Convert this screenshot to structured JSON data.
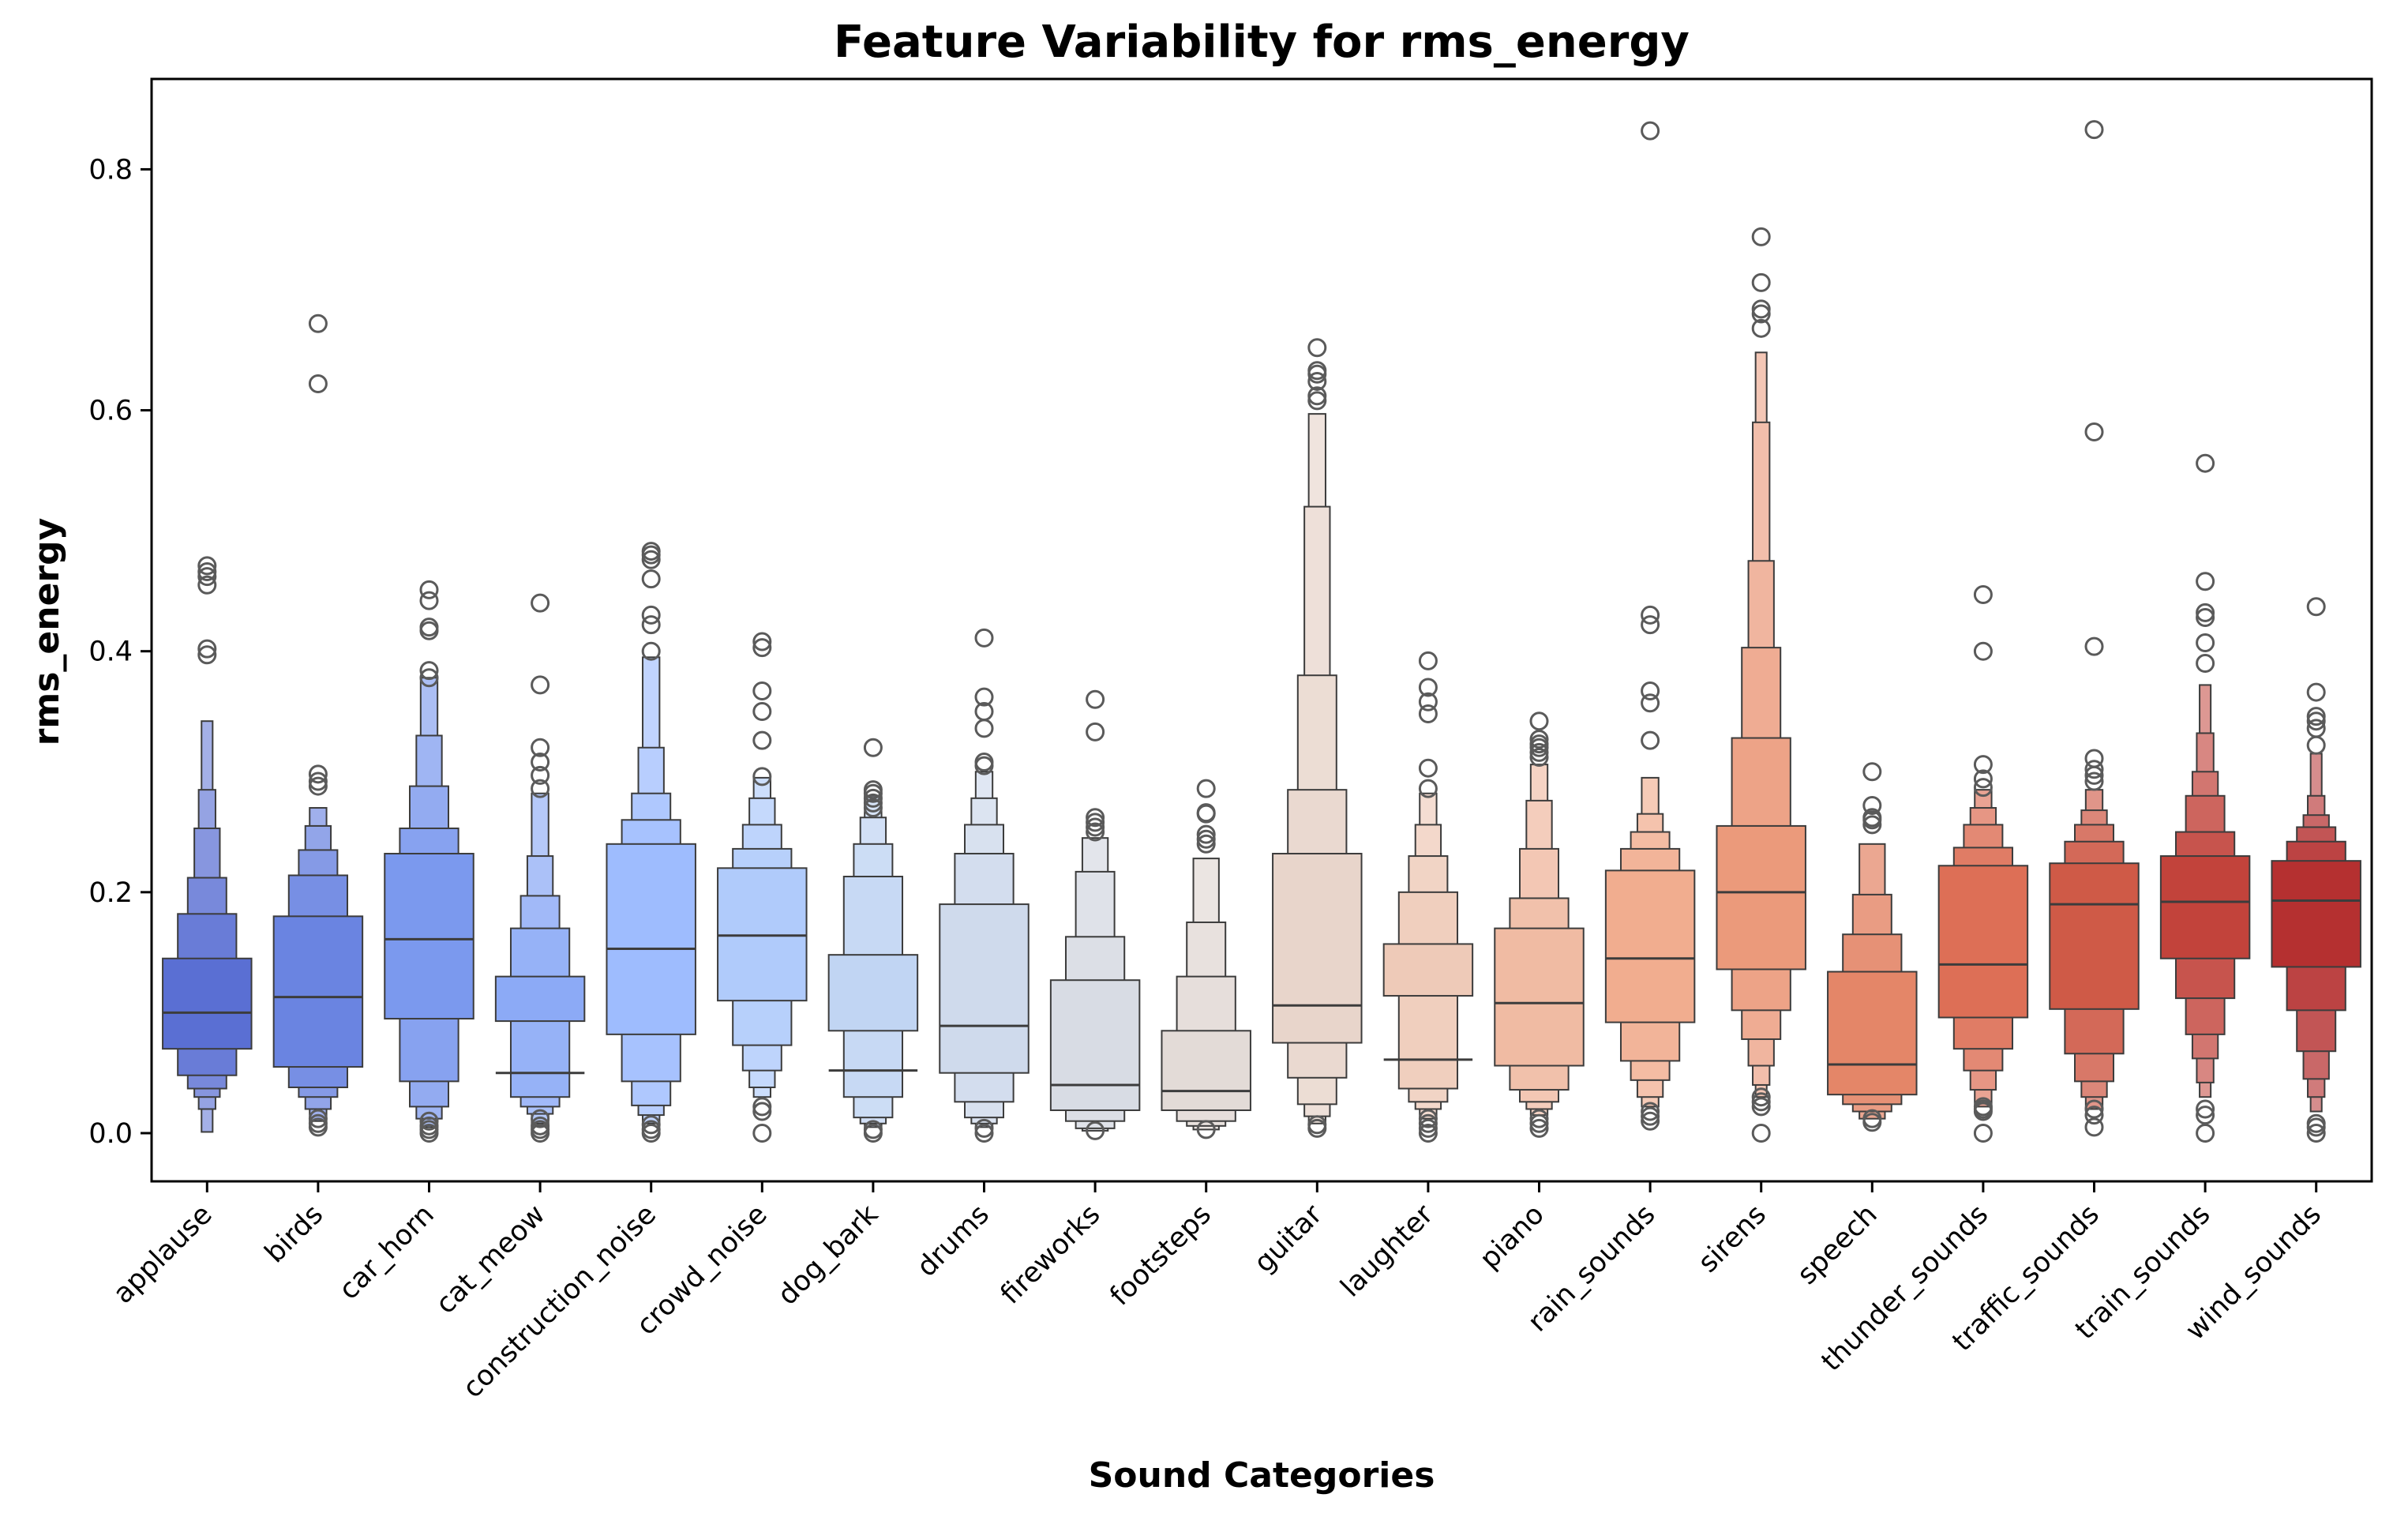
{
  "chart_data": {
    "type": "boxen",
    "title": "Feature Variability for rms_energy",
    "xlabel": "Sound Categories",
    "ylabel": "rms_energy",
    "ylim": [
      -0.04,
      0.875
    ],
    "yticks": [
      0.0,
      0.2,
      0.4,
      0.6,
      0.8
    ],
    "ytick_labels": [
      "0.0",
      "0.2",
      "0.4",
      "0.6",
      "0.8"
    ],
    "grid": false,
    "legend": "none",
    "palette": "coolwarm",
    "categories": [
      "applause",
      "birds",
      "car_horn",
      "cat_meow",
      "construction_noise",
      "crowd_noise",
      "dog_bark",
      "drums",
      "fireworks",
      "footsteps",
      "guitar",
      "laughter",
      "piano",
      "rain_sounds",
      "sirens",
      "speech",
      "thunder_sounds",
      "traffic_sounds",
      "train_sounds",
      "wind_sounds"
    ],
    "colors": [
      "#5a6fd3",
      "#6a84e1",
      "#7b99ee",
      "#8caaf6",
      "#9ebcfe",
      "#b0cbfb",
      "#c1d5f3",
      "#cfdaec",
      "#d8dce4",
      "#e3dbd7",
      "#e8d5cb",
      "#eecab8",
      "#f0bba3",
      "#f1ad8f",
      "#eb9a7b",
      "#e48668",
      "#dd6f56",
      "#cf5a47",
      "#c2433b",
      "#b53030"
    ],
    "series": [
      {
        "category": "applause",
        "median": 0.1,
        "bounds": [
          0.001,
          0.02,
          0.03,
          0.037,
          0.048,
          0.07,
          0.145,
          0.182,
          0.212,
          0.253,
          0.285,
          0.342
        ],
        "outliers": [
          0.397,
          0.402,
          0.455,
          0.462,
          0.466,
          0.471
        ]
      },
      {
        "category": "birds",
        "median": 0.113,
        "bounds": [
          0.01,
          0.02,
          0.03,
          0.038,
          0.055,
          0.075,
          0.18,
          0.214,
          0.235,
          0.255,
          0.27
        ],
        "outliers": [
          0.005,
          0.008,
          0.012,
          0.288,
          0.292,
          0.298,
          0.622,
          0.672
        ]
      },
      {
        "category": "car_horn",
        "median": 0.161,
        "bounds": [
          0.005,
          0.012,
          0.022,
          0.043,
          0.095,
          0.207,
          0.232,
          0.253,
          0.288,
          0.33,
          0.378
        ],
        "outliers": [
          0.0,
          0.003,
          0.006,
          0.01,
          0.378,
          0.384,
          0.417,
          0.42,
          0.442,
          0.451
        ]
      },
      {
        "category": "cat_meow",
        "median": 0.05,
        "bounds": [
          0.008,
          0.016,
          0.022,
          0.03,
          0.093,
          0.13,
          0.17,
          0.197,
          0.23,
          0.282
        ],
        "outliers": [
          0.0,
          0.003,
          0.006,
          0.012,
          0.286,
          0.297,
          0.308,
          0.32,
          0.372,
          0.44
        ]
      },
      {
        "category": "construction_noise",
        "median": 0.153,
        "bounds": [
          0.008,
          0.015,
          0.023,
          0.043,
          0.082,
          0.21,
          0.24,
          0.26,
          0.282,
          0.32,
          0.395
        ],
        "outliers": [
          0.0,
          0.003,
          0.007,
          0.4,
          0.422,
          0.43,
          0.46,
          0.476,
          0.48,
          0.483
        ]
      },
      {
        "category": "crowd_noise",
        "median": 0.164,
        "bounds": [
          0.03,
          0.038,
          0.052,
          0.073,
          0.11,
          0.2,
          0.22,
          0.236,
          0.256,
          0.278,
          0.295
        ],
        "outliers": [
          0.0,
          0.018,
          0.022,
          0.296,
          0.326,
          0.35,
          0.367,
          0.403,
          0.408
        ]
      },
      {
        "category": "dog_bark",
        "median": 0.052,
        "bounds": [
          0.005,
          0.008,
          0.013,
          0.03,
          0.085,
          0.148,
          0.213,
          0.24,
          0.262,
          0.28
        ],
        "outliers": [
          0.0,
          0.003,
          0.27,
          0.274,
          0.278,
          0.282,
          0.285,
          0.32
        ]
      },
      {
        "category": "drums",
        "median": 0.089,
        "bounds": [
          0.005,
          0.008,
          0.013,
          0.026,
          0.05,
          0.137,
          0.19,
          0.232,
          0.256,
          0.278,
          0.3
        ],
        "outliers": [
          0.0,
          0.004,
          0.305,
          0.308,
          0.336,
          0.35,
          0.362,
          0.411
        ]
      },
      {
        "category": "fireworks",
        "median": 0.04,
        "bounds": [
          0.002,
          0.004,
          0.01,
          0.019,
          0.082,
          0.127,
          0.163,
          0.217,
          0.245
        ],
        "outliers": [
          0.002,
          0.25,
          0.254,
          0.258,
          0.262,
          0.333,
          0.36
        ]
      },
      {
        "category": "footsteps",
        "median": 0.035,
        "bounds": [
          0.003,
          0.006,
          0.01,
          0.019,
          0.058,
          0.085,
          0.13,
          0.175,
          0.228
        ],
        "outliers": [
          0.003,
          0.24,
          0.244,
          0.248,
          0.265,
          0.266,
          0.286
        ]
      },
      {
        "category": "guitar",
        "median": 0.106,
        "bounds": [
          0.008,
          0.014,
          0.024,
          0.046,
          0.075,
          0.18,
          0.232,
          0.285,
          0.38,
          0.52,
          0.597
        ],
        "outliers": [
          0.004,
          0.007,
          0.608,
          0.612,
          0.624,
          0.63,
          0.633,
          0.652
        ]
      },
      {
        "category": "laughter",
        "median": 0.061,
        "bounds": [
          0.012,
          0.02,
          0.026,
          0.037,
          0.114,
          0.157,
          0.2,
          0.23,
          0.256,
          0.282
        ],
        "outliers": [
          0.0,
          0.004,
          0.008,
          0.012,
          0.286,
          0.303,
          0.348,
          0.358,
          0.37,
          0.392
        ]
      },
      {
        "category": "piano",
        "median": 0.108,
        "bounds": [
          0.015,
          0.02,
          0.026,
          0.036,
          0.056,
          0.142,
          0.17,
          0.195,
          0.236,
          0.276,
          0.306
        ],
        "outliers": [
          0.004,
          0.008,
          0.012,
          0.312,
          0.316,
          0.32,
          0.323,
          0.327,
          0.342
        ]
      },
      {
        "category": "rain_sounds",
        "median": 0.145,
        "bounds": [
          0.022,
          0.03,
          0.044,
          0.06,
          0.092,
          0.195,
          0.218,
          0.236,
          0.25,
          0.265,
          0.295
        ],
        "outliers": [
          0.01,
          0.014,
          0.018,
          0.326,
          0.357,
          0.367,
          0.422,
          0.43,
          0.832
        ]
      },
      {
        "category": "sirens",
        "median": 0.2,
        "bounds": [
          0.03,
          0.04,
          0.056,
          0.078,
          0.102,
          0.136,
          0.255,
          0.328,
          0.403,
          0.475,
          0.59,
          0.648
        ],
        "outliers": [
          0.0,
          0.022,
          0.026,
          0.03,
          0.668,
          0.68,
          0.684,
          0.706,
          0.744
        ]
      },
      {
        "category": "speech",
        "median": 0.057,
        "bounds": [
          0.012,
          0.018,
          0.024,
          0.032,
          0.093,
          0.134,
          0.165,
          0.198,
          0.24
        ],
        "outliers": [
          0.009,
          0.012,
          0.256,
          0.26,
          0.262,
          0.272,
          0.3
        ]
      },
      {
        "category": "thunder_sounds",
        "median": 0.14,
        "bounds": [
          0.022,
          0.036,
          0.052,
          0.07,
          0.096,
          0.19,
          0.222,
          0.237,
          0.256,
          0.27,
          0.285
        ],
        "outliers": [
          0.0,
          0.018,
          0.02,
          0.022,
          0.287,
          0.294,
          0.306,
          0.4,
          0.447
        ]
      },
      {
        "category": "traffic_sounds",
        "median": 0.19,
        "bounds": [
          0.02,
          0.03,
          0.043,
          0.066,
          0.103,
          0.14,
          0.224,
          0.242,
          0.256,
          0.268,
          0.285
        ],
        "outliers": [
          0.005,
          0.015,
          0.02,
          0.292,
          0.297,
          0.302,
          0.311,
          0.404,
          0.582,
          0.833
        ]
      },
      {
        "category": "train_sounds",
        "median": 0.192,
        "bounds": [
          0.03,
          0.042,
          0.062,
          0.082,
          0.112,
          0.145,
          0.23,
          0.25,
          0.28,
          0.3,
          0.332,
          0.372
        ],
        "outliers": [
          0.0,
          0.015,
          0.02,
          0.39,
          0.407,
          0.428,
          0.432,
          0.458,
          0.556
        ]
      },
      {
        "category": "wind_sounds",
        "median": 0.193,
        "bounds": [
          0.018,
          0.03,
          0.045,
          0.068,
          0.102,
          0.138,
          0.226,
          0.242,
          0.254,
          0.264,
          0.28,
          0.315
        ],
        "outliers": [
          0.0,
          0.005,
          0.008,
          0.322,
          0.336,
          0.342,
          0.346,
          0.366,
          0.437
        ]
      }
    ]
  }
}
